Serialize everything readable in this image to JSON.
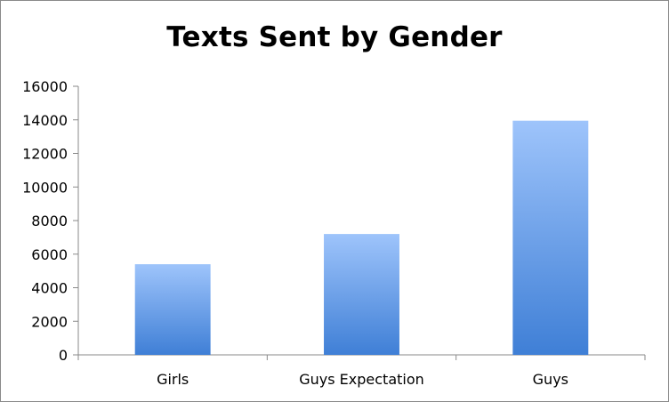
{
  "chart_data": {
    "type": "bar",
    "title": "Texts Sent by Gender",
    "xlabel": "",
    "ylabel": "",
    "categories": [
      "Girls",
      "Guys Expectation",
      "Guys"
    ],
    "values": [
      5400,
      7200,
      13950
    ],
    "ylim": [
      0,
      16000
    ],
    "yticks": [
      "0",
      "2000",
      "4000",
      "6000",
      "8000",
      "10000",
      "12000",
      "14000",
      "16000"
    ],
    "grid": false,
    "legend": "none",
    "bar_color_top": "#9ec4fb",
    "bar_color_bottom": "#3f7fd6",
    "axis_color": "#8a8a8a"
  }
}
